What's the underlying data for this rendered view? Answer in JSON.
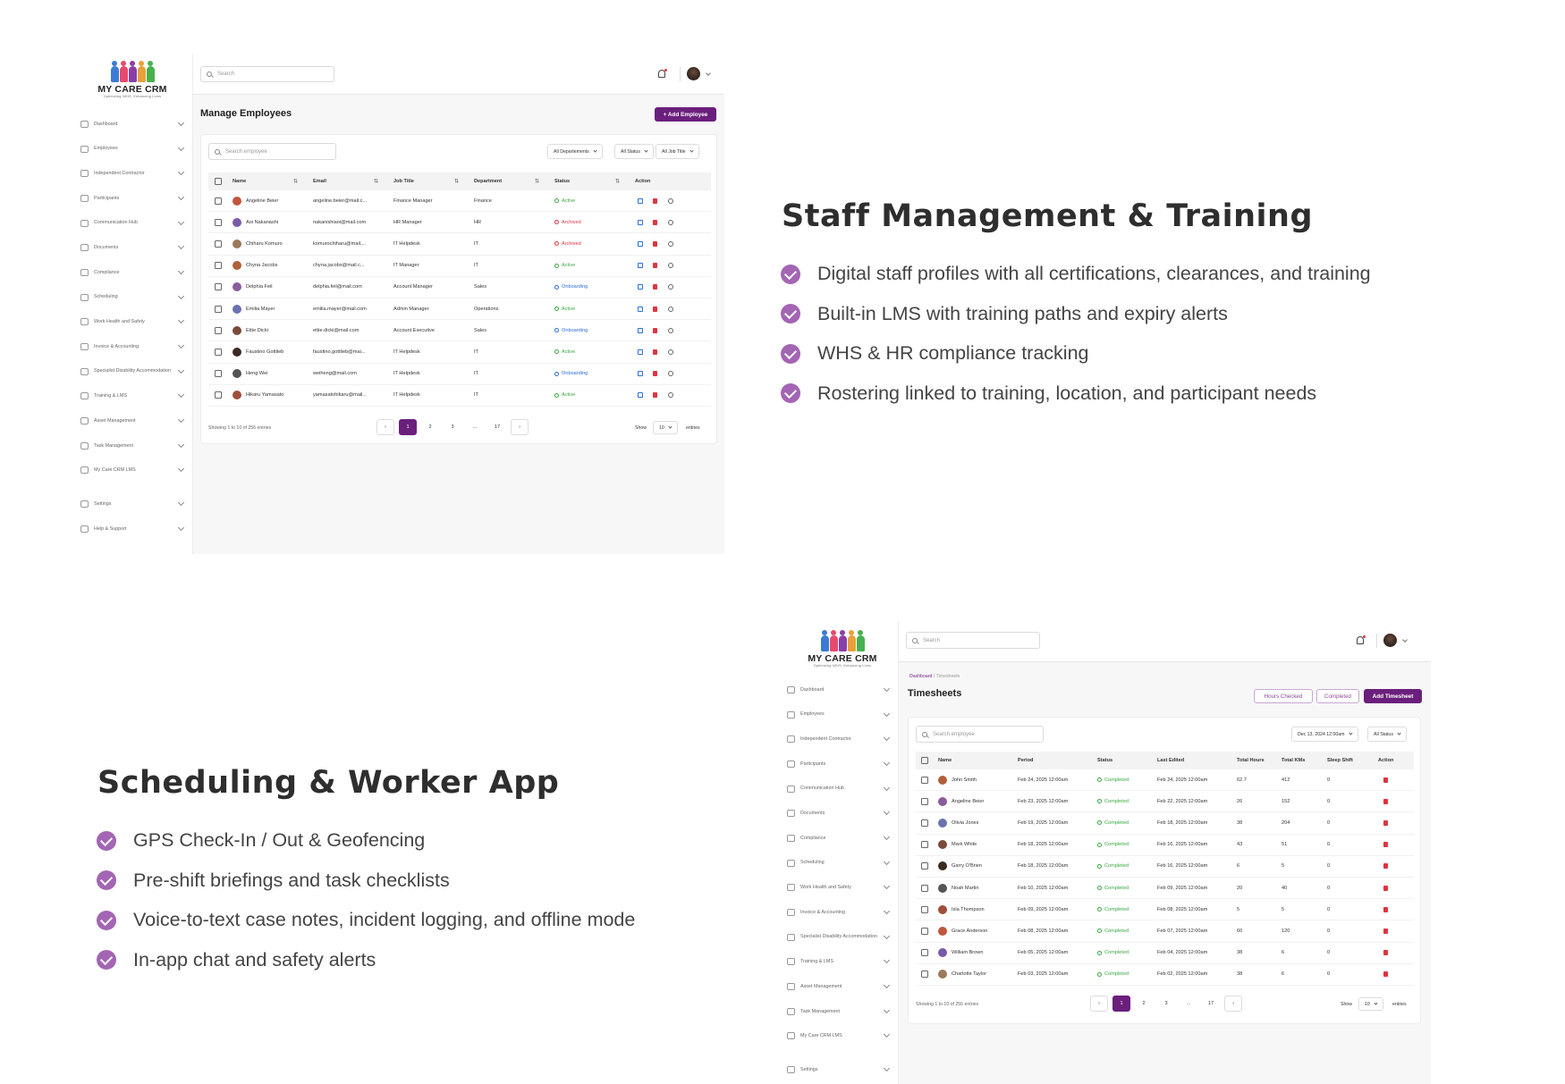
{
  "brand": {
    "name": "MY CARE CRM",
    "tagline": "Optimizing NDIS, Enhancing Lives"
  },
  "nav_items": [
    "Dashboard",
    "Employees",
    "Independent Contractor",
    "Participants",
    "Communication Hub",
    "Documents",
    "Compliance",
    "Scheduling",
    "Work Health and Safety",
    "Invoice & Accounting",
    "Specialist Disability Accommodation",
    "Training & LMS",
    "Asset Management",
    "Task Management",
    "My Care CRM LMS",
    "Settings",
    "Help & Support"
  ],
  "nav_items_2": [
    "Dashboard",
    "Employees",
    "Independent Contractor",
    "Participants",
    "Communication Hub",
    "Documents",
    "Compliance",
    "Scheduling",
    "Work Health and Safety",
    "Invoice & Accounting",
    "Specialist Disability Accommodation",
    "Training & LMS",
    "Asset Management",
    "Task Management",
    "My Care CRM LMS",
    "Settings"
  ],
  "topbar": {
    "search_placeholder": "Search"
  },
  "employees": {
    "title": "Manage Employees",
    "add_button": "+ Add Employee",
    "search_placeholder": "Search employee",
    "filters": [
      "All Departements",
      "All Status",
      "All Job Title"
    ],
    "columns": [
      "Name",
      "Email",
      "Job Title",
      "Department",
      "Status",
      "Action"
    ],
    "rows": [
      {
        "name": "Angeline Beier",
        "email": "angeline.beier@mail.c...",
        "job": "Finance Manager",
        "dept": "Finance",
        "status": "Active"
      },
      {
        "name": "Aoi Nakanashi",
        "email": "nakanishiaoi@mail.com",
        "job": "HR Manager",
        "dept": "HR",
        "status": "Archived"
      },
      {
        "name": "Chiharu Komuro",
        "email": "komurochiharu@mail....",
        "job": "IT Helpdesk",
        "dept": "IT",
        "status": "Archived"
      },
      {
        "name": "Chyna Jacobs",
        "email": "chyna.jacobs@mail.c...",
        "job": "IT Manager",
        "dept": "IT",
        "status": "Active"
      },
      {
        "name": "Delphia Feil",
        "email": "delphia.feil@mail.com",
        "job": "Account Manager",
        "dept": "Sales",
        "status": "Onboarding"
      },
      {
        "name": "Emilia Mayer",
        "email": "emilia.mayer@mail.com",
        "job": "Admin Manager",
        "dept": "Operations",
        "status": "Active"
      },
      {
        "name": "Ettie Dicki",
        "email": "ettie.dicki@mail.com",
        "job": "Account Executive",
        "dept": "Sales",
        "status": "Onboarding"
      },
      {
        "name": "Faustino Gottlieb",
        "email": "faustino.gottlieb@mai...",
        "job": "IT Helpdesk",
        "dept": "IT",
        "status": "Active"
      },
      {
        "name": "Heng Wei",
        "email": "weiheng@mail.com",
        "job": "IT Helpdesk",
        "dept": "IT",
        "status": "Onboarding"
      },
      {
        "name": "Hikaru Yamasato",
        "email": "yamasatohikaru@mail...",
        "job": "IT Helpdesk",
        "dept": "IT",
        "status": "Active"
      }
    ],
    "showing": "Showing 1 to 10 of 256 entries",
    "pages": [
      "‹",
      "1",
      "2",
      "3",
      "...",
      "17",
      "›"
    ],
    "show_label": "Show",
    "page_size": "10",
    "entries_label": "entries"
  },
  "timesheets": {
    "breadcrumb": [
      "Dashboard",
      "Timesheets"
    ],
    "title": "Timesheets",
    "buttons": {
      "hours_checked": "Hours Checked",
      "completed": "Completed",
      "add": "Add Timesheet"
    },
    "search_placeholder": "Search employee",
    "filters": [
      "Dec 13, 2024 12:00am",
      "All Status"
    ],
    "columns": [
      "Name",
      "Period",
      "Status",
      "Last Edited",
      "Total Hours",
      "Total KMs",
      "Sleep Shift",
      "Action"
    ],
    "rows": [
      {
        "name": "John Smith",
        "period": "Feb 24, 2025 12:00am",
        "status": "Completed",
        "edited": "Feb 24, 2025 12:00am",
        "hours": "62.7",
        "kms": "412",
        "sleep": "0"
      },
      {
        "name": "Angeline Beier",
        "period": "Feb 23, 2025 12:00am",
        "status": "Completed",
        "edited": "Feb 22, 2025 12:00am",
        "hours": "26",
        "kms": "152",
        "sleep": "0"
      },
      {
        "name": "Olivia Jones",
        "period": "Feb 19, 2025 12:00am",
        "status": "Completed",
        "edited": "Feb 18, 2025 12:00am",
        "hours": "38",
        "kms": "204",
        "sleep": "0"
      },
      {
        "name": "Mark White",
        "period": "Feb 18, 2025 12:00am",
        "status": "Completed",
        "edited": "Feb 16, 2025 12:00am",
        "hours": "43",
        "kms": "51",
        "sleep": "0"
      },
      {
        "name": "Garry O'Brien",
        "period": "Feb 18, 2025 12:00am",
        "status": "Completed",
        "edited": "Feb 16, 2025 12:00am",
        "hours": "6",
        "kms": "5",
        "sleep": "0"
      },
      {
        "name": "Noah Martin",
        "period": "Feb 10, 2025 12:00am",
        "status": "Completed",
        "edited": "Feb 09, 2025 12:00am",
        "hours": "20",
        "kms": "40",
        "sleep": "0"
      },
      {
        "name": "Isla Thompson",
        "period": "Feb 09, 2025 12:00am",
        "status": "Completed",
        "edited": "Feb 08, 2025 12:00am",
        "hours": "5",
        "kms": "5",
        "sleep": "0"
      },
      {
        "name": "Grace Anderson",
        "period": "Feb 08, 2025 12:00am",
        "status": "Completed",
        "edited": "Feb 07, 2025 12:00am",
        "hours": "60",
        "kms": "120",
        "sleep": "0"
      },
      {
        "name": "William Brown",
        "period": "Feb 05, 2025 12:00am",
        "status": "Completed",
        "edited": "Feb 04, 2025 12:00am",
        "hours": "38",
        "kms": "6",
        "sleep": "0"
      },
      {
        "name": "Charlotte Taylor",
        "period": "Feb 03, 2025 12:00am",
        "status": "Completed",
        "edited": "Feb 02, 2025 12:00am",
        "hours": "38",
        "kms": "6",
        "sleep": "0"
      }
    ],
    "showing": "Showing 1 to 10 of 256 entries",
    "pages": [
      "‹",
      "1",
      "2",
      "3",
      "...",
      "17",
      "›"
    ],
    "show_label": "Show",
    "page_size": "10",
    "entries_label": "entries"
  },
  "section1": {
    "heading": "Staff Management & Training",
    "features": [
      "Digital staff profiles with all certifications, clearances, and training",
      "Built-in LMS with training paths and expiry alerts",
      "WHS & HR compliance tracking",
      "Rostering linked to training, location, and participant needs"
    ]
  },
  "section2": {
    "heading": "Scheduling & Worker App",
    "features": [
      "GPS Check-In / Out & Geofencing",
      "Pre-shift briefings and task checklists",
      "Voice-to-text case notes, incident logging, and offline mode",
      "In-app chat and safety alerts"
    ]
  },
  "colors": {
    "accent": "#6b1f7c",
    "check": "#a365b4",
    "active": "#3aa842",
    "archived": "#e0343f",
    "onboarding": "#2a6fdb"
  },
  "avatar_colors": [
    "#c0563b",
    "#7a5aa8",
    "#9a7a5a",
    "#b0603a",
    "#8a5c9c",
    "#6a72b0",
    "#7a4a3a",
    "#3a2a22",
    "#555",
    "#a0503a"
  ]
}
